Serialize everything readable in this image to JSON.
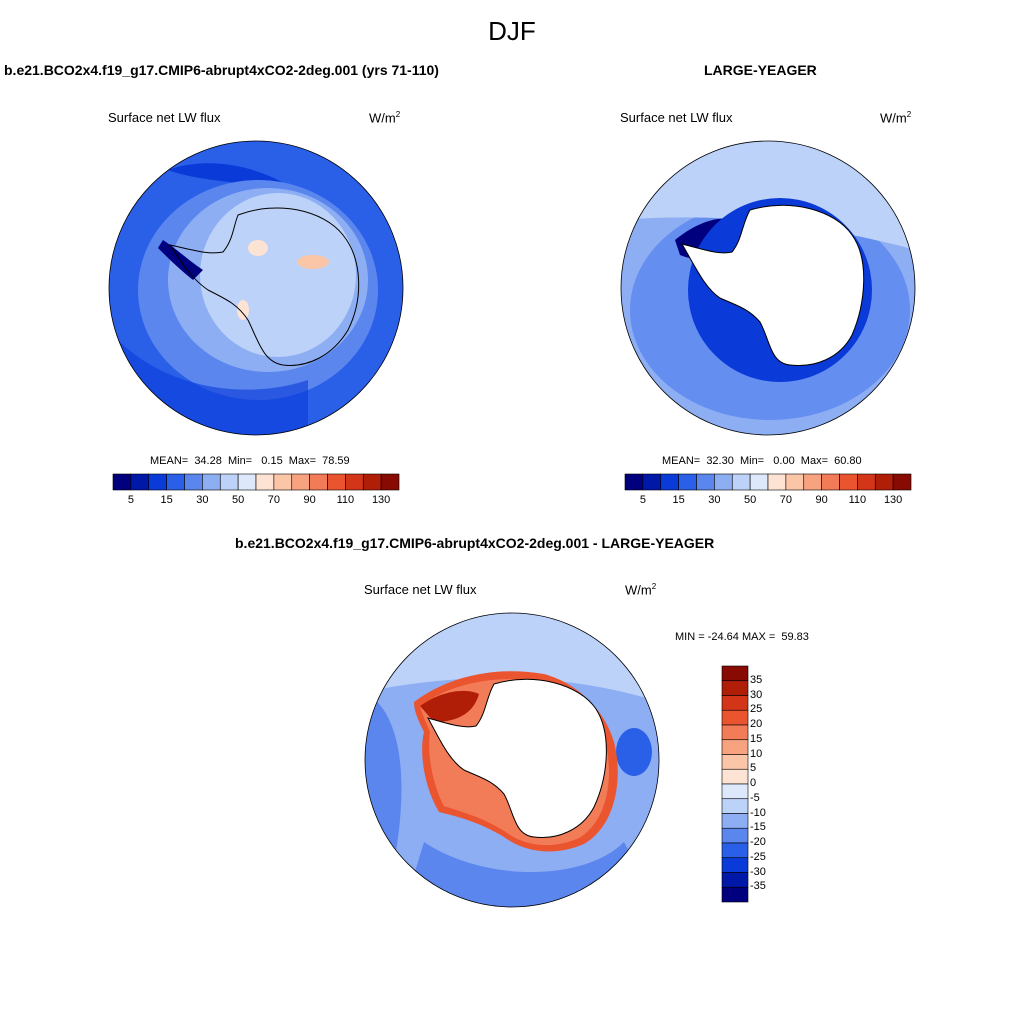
{
  "figure": {
    "title": "DJF",
    "panels": [
      {
        "title": "b.e21.BCO2x4.f19_g17.CMIP6-abrupt4xCO2-2deg.001 (yrs 71-110)",
        "variable": "Surface net LW flux",
        "units_base": "W/m",
        "units_exp": "2",
        "stats": "MEAN=  34.28  Min=   0.15  Max=  78.59",
        "colorbar_ticks": [
          "5",
          "15",
          "30",
          "50",
          "70",
          "90",
          "110",
          "130"
        ]
      },
      {
        "title": "LARGE-YEAGER",
        "variable": "Surface net LW flux",
        "units_base": "W/m",
        "units_exp": "2",
        "stats": "MEAN=  32.30  Min=   0.00  Max=  60.80",
        "colorbar_ticks": [
          "5",
          "15",
          "30",
          "50",
          "70",
          "90",
          "110",
          "130"
        ]
      },
      {
        "title": "b.e21.BCO2x4.f19_g17.CMIP6-abrupt4xCO2-2deg.001 - LARGE-YEAGER",
        "variable": "Surface net LW flux",
        "units_base": "W/m",
        "units_exp": "2",
        "stats": "MIN = -24.64 MAX =  59.83",
        "colorbar_ticks": [
          "35",
          "30",
          "25",
          "20",
          "15",
          "10",
          "5",
          "0",
          "-5",
          "-10",
          "-15",
          "-20",
          "-25",
          "-30",
          "-35"
        ]
      }
    ],
    "colors": {
      "abs_scale": [
        "#00007f",
        "#0018a8",
        "#0a3ad8",
        "#2a5fe8",
        "#5a86ee",
        "#8eaef4",
        "#bcd2f8",
        "#dde9fb",
        "#fde3d3",
        "#fbc6a8",
        "#f7a37f",
        "#f37c58",
        "#ea5530",
        "#d33518",
        "#b01e08",
        "#870b02"
      ],
      "diff_scale": [
        "#870b02",
        "#b01e08",
        "#d33518",
        "#ea5530",
        "#f37c58",
        "#f7a37f",
        "#fbc6a8",
        "#fde3d3",
        "#dde9fb",
        "#bcd2f8",
        "#8eaef4",
        "#5a86ee",
        "#2a5fe8",
        "#0a3ad8",
        "#0018a8",
        "#00007f"
      ],
      "land": "#ffffff"
    }
  }
}
